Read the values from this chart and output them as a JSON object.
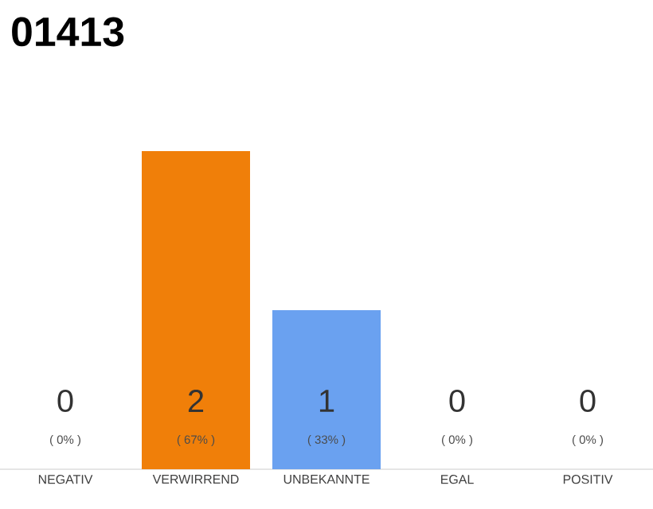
{
  "chart_data": {
    "type": "bar",
    "title": "01413",
    "categories": [
      "NEGATIV",
      "VERWIRREND",
      "UNBEKANNTE",
      "EGAL",
      "POSITIV"
    ],
    "values": [
      0,
      2,
      1,
      0,
      0
    ],
    "colors": [
      "#f07f09",
      "#f07f09",
      "#6aa1f0",
      "#f07f09",
      "#f07f09"
    ],
    "data_labels": true,
    "annotations": [
      "( 0% )",
      "( 67% )",
      "( 33% )",
      "( 0% )",
      "( 0% )"
    ]
  }
}
